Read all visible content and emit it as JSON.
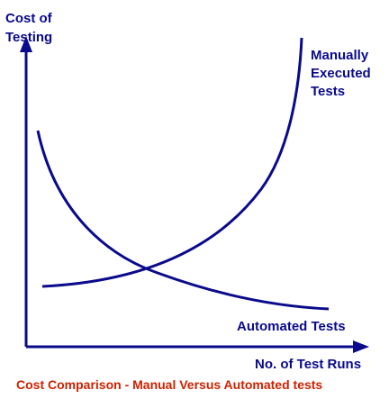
{
  "colors": {
    "axis": "#0a0a8c",
    "curve": "#0a0a8c",
    "label": "#0a0a8c",
    "caption": "#cc2200",
    "background": "#ffffff"
  },
  "diagram": {
    "y_axis_label_line1": "Cost of",
    "y_axis_label_line2": "Testing",
    "x_axis_label": "No. of Test Runs",
    "manual_label_line1": "Manually",
    "manual_label_line2": "Executed",
    "manual_label_line3": "Tests",
    "automated_label": "Automated Tests",
    "caption": "Cost Comparison - Manual Versus Automated tests"
  }
}
